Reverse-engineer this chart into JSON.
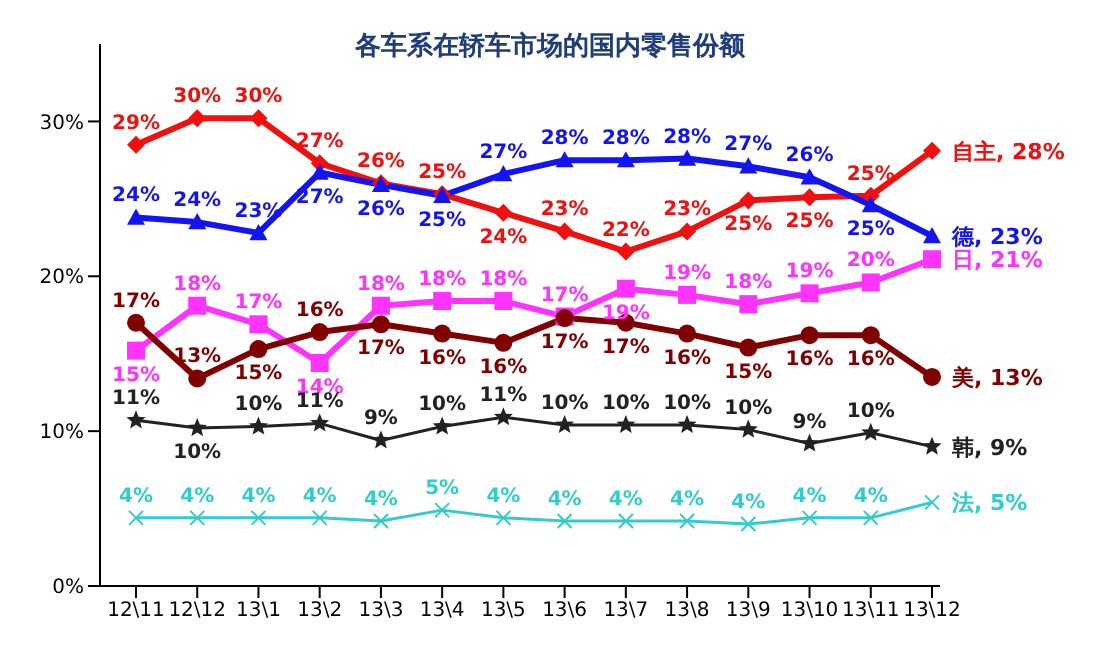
{
  "chart_data": {
    "type": "line",
    "title": "各车系在轿车市场的国内零售份额",
    "categories": [
      "12\\11",
      "12\\12",
      "13\\1",
      "13\\2",
      "13\\3",
      "13\\4",
      "13\\5",
      "13\\6",
      "13\\7",
      "13\\8",
      "13\\9",
      "13\\10",
      "13\\11",
      "13\\12"
    ],
    "ylim": [
      0,
      35
    ],
    "yticks": [
      {
        "value": 0,
        "label": "0%"
      },
      {
        "value": 10,
        "label": "10%"
      },
      {
        "value": 20,
        "label": "20%"
      },
      {
        "value": 30,
        "label": "30%"
      }
    ],
    "grid": false,
    "legend": false,
    "series": [
      {
        "name": "自主,",
        "color": "#f01010",
        "marker": "diamond",
        "values": [
          28.5,
          30.2,
          30.2,
          27.3,
          26.0,
          25.3,
          24.1,
          22.9,
          21.6,
          22.9,
          24.9,
          25.1,
          25.2,
          28.1
        ],
        "value_labels": [
          "29%",
          "30%",
          "30%",
          "27%",
          "26%",
          "25%",
          "24%",
          "23%",
          "22%",
          "23%",
          "25%",
          "25%",
          "25%",
          "28%"
        ]
      },
      {
        "name": "德,",
        "color": "#1414f0",
        "marker": "triangle",
        "values": [
          23.8,
          23.5,
          22.8,
          26.7,
          25.9,
          25.2,
          26.6,
          27.5,
          27.5,
          27.6,
          27.1,
          26.4,
          24.6,
          22.6
        ],
        "value_labels": [
          "24%",
          "24%",
          "23%",
          "27%",
          "26%",
          "25%",
          "27%",
          "28%",
          "28%",
          "28%",
          "27%",
          "26%",
          "25%",
          "23%"
        ]
      },
      {
        "name": "日,",
        "color": "#ff33ff",
        "marker": "square",
        "values": [
          15.2,
          18.1,
          16.9,
          14.4,
          18.1,
          18.4,
          18.4,
          17.4,
          19.2,
          18.8,
          18.2,
          18.9,
          19.6,
          21.1
        ],
        "value_labels": [
          "15%",
          "18%",
          "17%",
          "14%",
          "18%",
          "18%",
          "18%",
          "17%",
          "19%",
          "19%",
          "18%",
          "19%",
          "20%",
          "21%"
        ]
      },
      {
        "name": "美,",
        "color": "#800000",
        "marker": "circle",
        "values": [
          17.0,
          13.4,
          15.3,
          16.4,
          16.9,
          16.3,
          15.7,
          17.3,
          17.0,
          16.3,
          15.4,
          16.2,
          16.2,
          13.5
        ],
        "value_labels": [
          "17%",
          "13%",
          "15%",
          "16%",
          "17%",
          "16%",
          "16%",
          "17%",
          "17%",
          "16%",
          "15%",
          "16%",
          "16%",
          "13%"
        ]
      },
      {
        "name": "韩,",
        "color": "#222222",
        "marker": "star",
        "values": [
          10.7,
          10.2,
          10.3,
          10.5,
          9.4,
          10.3,
          10.9,
          10.4,
          10.4,
          10.4,
          10.1,
          9.2,
          9.9,
          9.0
        ],
        "value_labels": [
          "11%",
          "10%",
          "10%",
          "11%",
          "9%",
          "10%",
          "11%",
          "10%",
          "10%",
          "10%",
          "10%",
          "9%",
          "10%",
          "9%"
        ]
      },
      {
        "name": "法,",
        "color": "#33cccc",
        "marker": "cross",
        "values": [
          4.4,
          4.4,
          4.4,
          4.4,
          4.2,
          4.9,
          4.4,
          4.2,
          4.2,
          4.2,
          4.0,
          4.4,
          4.4,
          5.4
        ],
        "value_labels": [
          "4%",
          "4%",
          "4%",
          "4%",
          "4%",
          "5%",
          "4%",
          "4%",
          "4%",
          "4%",
          "4%",
          "4%",
          "4%",
          "5%"
        ]
      }
    ]
  }
}
